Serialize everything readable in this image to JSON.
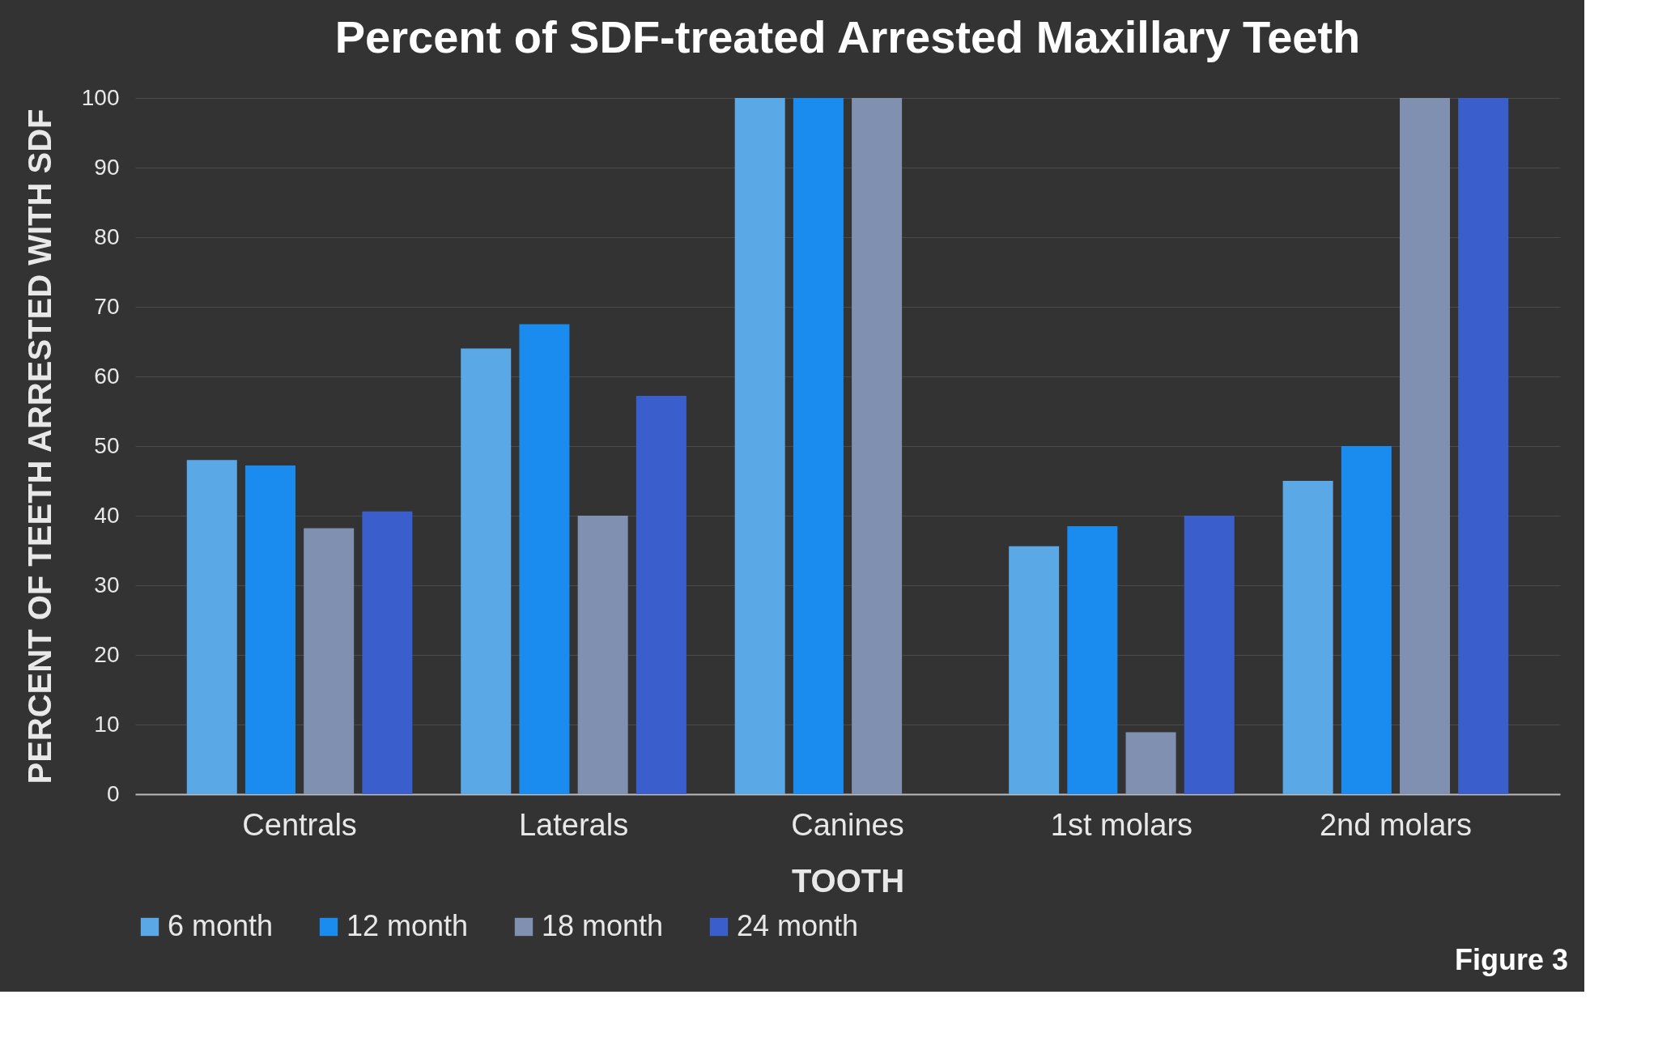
{
  "chart_data": {
    "type": "bar",
    "title": "Percent of SDF-treated Arrested Maxillary Teeth",
    "xlabel": "TOOTH",
    "ylabel": "PERCENT OF TEETH ARRESTED WITH SDF",
    "categories": [
      "Centrals",
      "Laterals",
      "Canines",
      "1st molars",
      "2nd molars"
    ],
    "series": [
      {
        "name": "6 month",
        "color": "#5aa9e6",
        "values": [
          48,
          64,
          100,
          35.6,
          45
        ]
      },
      {
        "name": "12 month",
        "color": "#1a8cf0",
        "values": [
          47.2,
          67.5,
          100,
          38.5,
          50
        ]
      },
      {
        "name": "18 month",
        "color": "#8090b0",
        "values": [
          38.2,
          40,
          100,
          8.9,
          100
        ]
      },
      {
        "name": "24 month",
        "color": "#3a5fcc",
        "values": [
          40.6,
          57.2,
          null,
          40,
          100
        ]
      }
    ],
    "ylim": [
      0,
      100
    ],
    "yticks": [
      0,
      10,
      20,
      30,
      40,
      50,
      60,
      70,
      80,
      90,
      100
    ],
    "grid": "y",
    "legend": "bottom",
    "annotations": [
      "Figure 3"
    ]
  }
}
